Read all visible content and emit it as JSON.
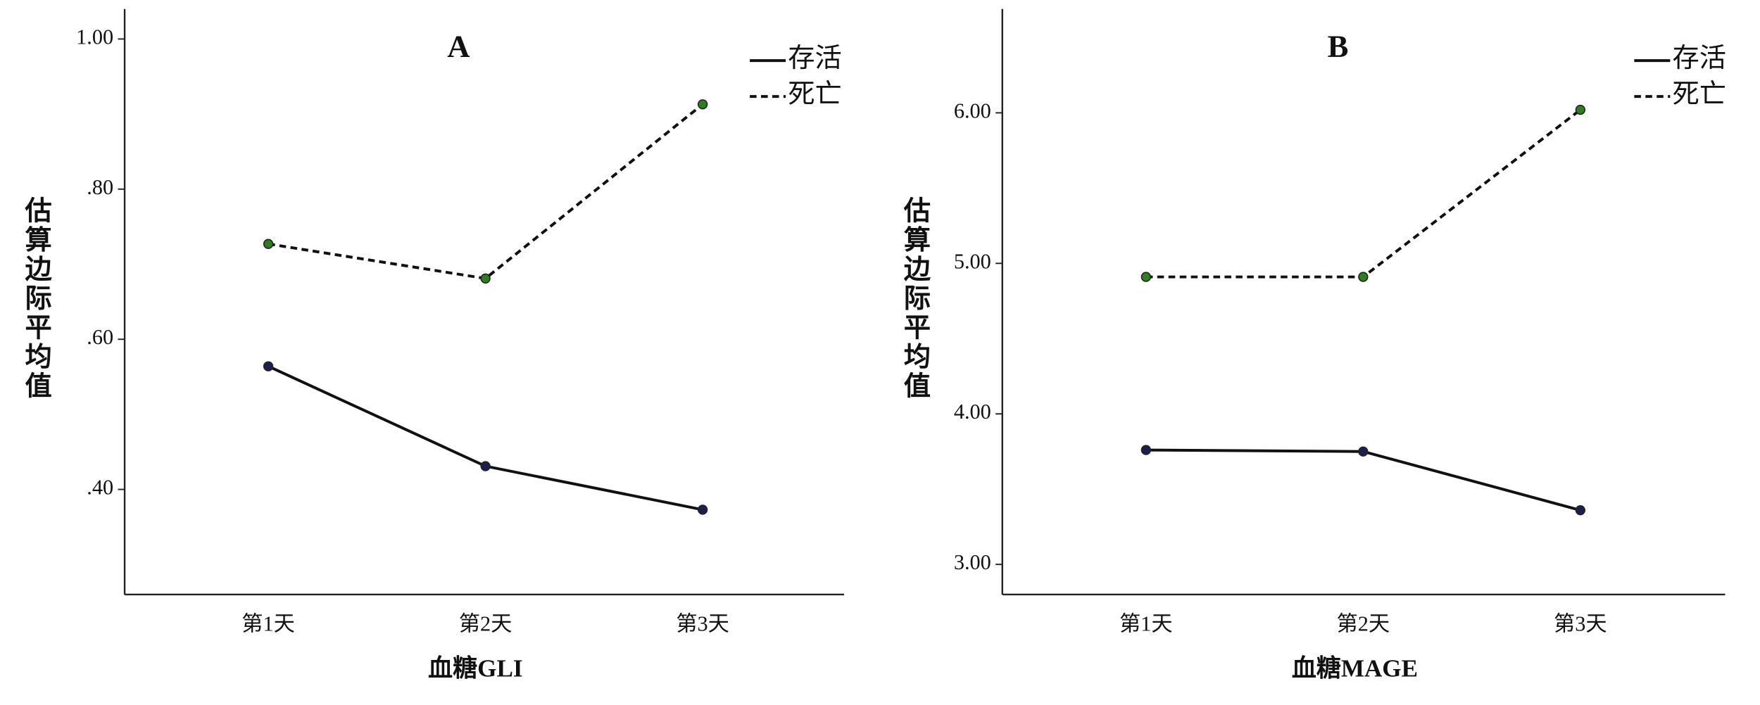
{
  "chart_data": [
    {
      "type": "line",
      "title": "A",
      "x_label": "血糖GLI",
      "y_label": "估算边际平均值",
      "categories": [
        "第1天",
        "第2天",
        "第3天"
      ],
      "series": [
        {
          "name": "存活",
          "color": "#1a1f4d",
          "linestyle": "solid",
          "values": [
            0.564,
            0.431,
            0.373
          ]
        },
        {
          "name": "死亡",
          "color": "#2e7d1f",
          "linestyle": "dashed",
          "values": [
            0.727,
            0.681,
            0.913
          ]
        }
      ],
      "ylim": [
        0.26,
        1.04
      ],
      "yticks": [
        {
          "value": 0.4,
          "label": ".40"
        },
        {
          "value": 0.6,
          "label": ".60"
        },
        {
          "value": 0.8,
          "label": ".80"
        },
        {
          "value": 1,
          "label": "1.00"
        }
      ],
      "legend": "top-right"
    },
    {
      "type": "line",
      "title": "B",
      "x_label": "血糖MAGE",
      "y_label": "估算边际平均值",
      "categories": [
        "第1天",
        "第2天",
        "第3天"
      ],
      "series": [
        {
          "name": "存活",
          "color": "#1a1f4d",
          "linestyle": "solid",
          "values": [
            3.76,
            3.75,
            3.36
          ]
        },
        {
          "name": "死亡",
          "color": "#2e7d1f",
          "linestyle": "dashed",
          "values": [
            4.91,
            4.91,
            6.02
          ]
        }
      ],
      "ylim": [
        2.8,
        6.69
      ],
      "yticks": [
        {
          "value": 3,
          "label": "3.00"
        },
        {
          "value": 4,
          "label": "4.00"
        },
        {
          "value": 5,
          "label": "5.00"
        },
        {
          "value": 6,
          "label": "6.00"
        }
      ],
      "legend": "top-right"
    }
  ]
}
